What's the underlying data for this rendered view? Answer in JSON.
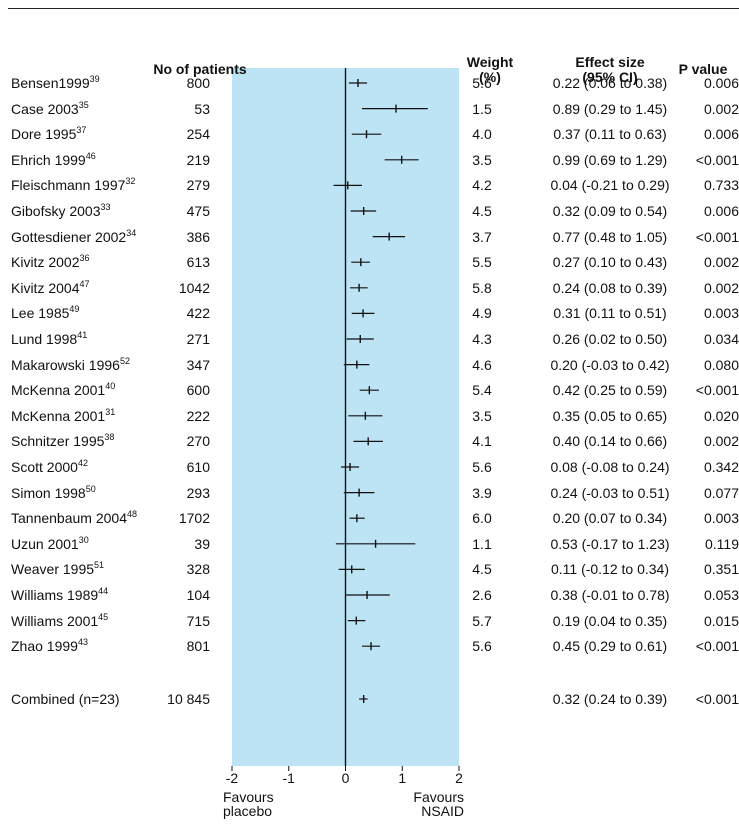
{
  "headers": {
    "patients": "No of patients",
    "weight_1": "Weight",
    "weight_2": "(%)",
    "effect_1": "Effect size",
    "effect_2": "(95% CI)",
    "pvalue": "P value"
  },
  "rows": [
    {
      "study": "Bensen1999",
      "ref": "39",
      "n": "800",
      "weight": "5.6",
      "effect": "0.22 (0.06 to 0.38)",
      "p": "0.006"
    },
    {
      "study": "Case 2003",
      "ref": "35",
      "n": "53",
      "weight": "1.5",
      "effect": "0.89 (0.29 to 1.45)",
      "p": "0.002"
    },
    {
      "study": "Dore 1995",
      "ref": "37",
      "n": "254",
      "weight": "4.0",
      "effect": "0.37 (0.11 to 0.63)",
      "p": "0.006"
    },
    {
      "study": "Ehrich 1999",
      "ref": "46",
      "n": "219",
      "weight": "3.5",
      "effect": "0.99 (0.69 to 1.29)",
      "p": "<0.001"
    },
    {
      "study": "Fleischmann 1997",
      "ref": "32",
      "n": "279",
      "weight": "4.2",
      "effect": "0.04 (-0.21 to 0.29)",
      "p": "0.733"
    },
    {
      "study": "Gibofsky 2003",
      "ref": "33",
      "n": "475",
      "weight": "4.5",
      "effect": "0.32 (0.09 to 0.54)",
      "p": "0.006"
    },
    {
      "study": "Gottesdiener 2002",
      "ref": "34",
      "n": "386",
      "weight": "3.7",
      "effect": "0.77 (0.48 to 1.05)",
      "p": "<0.001"
    },
    {
      "study": "Kivitz 2002",
      "ref": "36",
      "n": "613",
      "weight": "5.5",
      "effect": "0.27 (0.10 to 0.43)",
      "p": "0.002"
    },
    {
      "study": "Kivitz 2004",
      "ref": "47",
      "n": "1042",
      "weight": "5.8",
      "effect": "0.24 (0.08 to 0.39)",
      "p": "0.002"
    },
    {
      "study": "Lee 1985",
      "ref": "49",
      "n": "422",
      "weight": "4.9",
      "effect": "0.31 (0.11 to 0.51)",
      "p": "0.003"
    },
    {
      "study": "Lund 1998",
      "ref": "41",
      "n": "271",
      "weight": "4.3",
      "effect": "0.26 (0.02 to 0.50)",
      "p": "0.034"
    },
    {
      "study": "Makarowski 1996",
      "ref": "52",
      "n": "347",
      "weight": "4.6",
      "effect": "0.20 (-0.03 to 0.42)",
      "p": "0.080"
    },
    {
      "study": "McKenna 2001",
      "ref": "40",
      "n": "600",
      "weight": "5.4",
      "effect": "0.42 (0.25 to 0.59)",
      "p": "<0.001"
    },
    {
      "study": "McKenna 2001",
      "ref": "31",
      "n": "222",
      "weight": "3.5",
      "effect": "0.35 (0.05 to 0.65)",
      "p": "0.020"
    },
    {
      "study": "Schnitzer 1995",
      "ref": "38",
      "n": "270",
      "weight": "4.1",
      "effect": "0.40 (0.14 to 0.66)",
      "p": "0.002"
    },
    {
      "study": "Scott 2000",
      "ref": "42",
      "n": "610",
      "weight": "5.6",
      "effect": "0.08 (-0.08 to 0.24)",
      "p": "0.342"
    },
    {
      "study": "Simon 1998",
      "ref": "50",
      "n": "293",
      "weight": "3.9",
      "effect": "0.24 (-0.03 to 0.51)",
      "p": "0.077"
    },
    {
      "study": "Tannenbaum 2004",
      "ref": "48",
      "n": "1702",
      "weight": "6.0",
      "effect": "0.20 (0.07 to 0.34)",
      "p": "0.003"
    },
    {
      "study": "Uzun 2001",
      "ref": "30",
      "n": "39",
      "weight": "1.1",
      "effect": "0.53 (-0.17 to 1.23)",
      "p": "0.119"
    },
    {
      "study": "Weaver 1995",
      "ref": "51",
      "n": "328",
      "weight": "4.5",
      "effect": "0.11 (-0.12 to 0.34)",
      "p": "0.351"
    },
    {
      "study": "Williams 1989",
      "ref": "44",
      "n": "104",
      "weight": "2.6",
      "effect": "0.38 (-0.01 to 0.78)",
      "p": "0.053"
    },
    {
      "study": "Williams 2001",
      "ref": "45",
      "n": "715",
      "weight": "5.7",
      "effect": "0.19 (0.04 to 0.35)",
      "p": "0.015"
    },
    {
      "study": "Zhao 1999",
      "ref": "43",
      "n": "801",
      "weight": "5.6",
      "effect": "0.45 (0.29 to 0.61)",
      "p": "<0.001"
    }
  ],
  "combined": {
    "study": "Combined (n=23)",
    "n": "10 845",
    "effect": "0.32 (0.24 to 0.39)",
    "p": "<0.001"
  },
  "footer": {
    "left_1": "Favours",
    "left_2": "placebo",
    "right_1": "Favours",
    "right_2": "NSAID"
  },
  "colors": {
    "panel": "#bde4f4",
    "line": "#111111"
  },
  "chart_data": {
    "type": "forest",
    "xlim": [
      -2,
      2
    ],
    "xticks": [
      -2,
      -1,
      0,
      1,
      2
    ],
    "xtick_labels": [
      "-2",
      "-1",
      "0",
      "1",
      "2"
    ],
    "reference_line": 0,
    "series": [
      {
        "values": [
          {
            "est": 0.22,
            "lo": 0.06,
            "hi": 0.38
          },
          {
            "est": 0.89,
            "lo": 0.29,
            "hi": 1.45
          },
          {
            "est": 0.37,
            "lo": 0.11,
            "hi": 0.63
          },
          {
            "est": 0.99,
            "lo": 0.69,
            "hi": 1.29
          },
          {
            "est": 0.04,
            "lo": -0.21,
            "hi": 0.29
          },
          {
            "est": 0.32,
            "lo": 0.09,
            "hi": 0.54
          },
          {
            "est": 0.77,
            "lo": 0.48,
            "hi": 1.05
          },
          {
            "est": 0.27,
            "lo": 0.1,
            "hi": 0.43
          },
          {
            "est": 0.24,
            "lo": 0.08,
            "hi": 0.39
          },
          {
            "est": 0.31,
            "lo": 0.11,
            "hi": 0.51
          },
          {
            "est": 0.26,
            "lo": 0.02,
            "hi": 0.5
          },
          {
            "est": 0.2,
            "lo": -0.03,
            "hi": 0.42
          },
          {
            "est": 0.42,
            "lo": 0.25,
            "hi": 0.59
          },
          {
            "est": 0.35,
            "lo": 0.05,
            "hi": 0.65
          },
          {
            "est": 0.4,
            "lo": 0.14,
            "hi": 0.66
          },
          {
            "est": 0.08,
            "lo": -0.08,
            "hi": 0.24
          },
          {
            "est": 0.24,
            "lo": -0.03,
            "hi": 0.51
          },
          {
            "est": 0.2,
            "lo": 0.07,
            "hi": 0.34
          },
          {
            "est": 0.53,
            "lo": -0.17,
            "hi": 1.23
          },
          {
            "est": 0.11,
            "lo": -0.12,
            "hi": 0.34
          },
          {
            "est": 0.38,
            "lo": -0.01,
            "hi": 0.78
          },
          {
            "est": 0.19,
            "lo": 0.04,
            "hi": 0.35
          },
          {
            "est": 0.45,
            "lo": 0.29,
            "hi": 0.61
          }
        ]
      }
    ],
    "combined": {
      "est": 0.32,
      "lo": 0.24,
      "hi": 0.39
    }
  }
}
